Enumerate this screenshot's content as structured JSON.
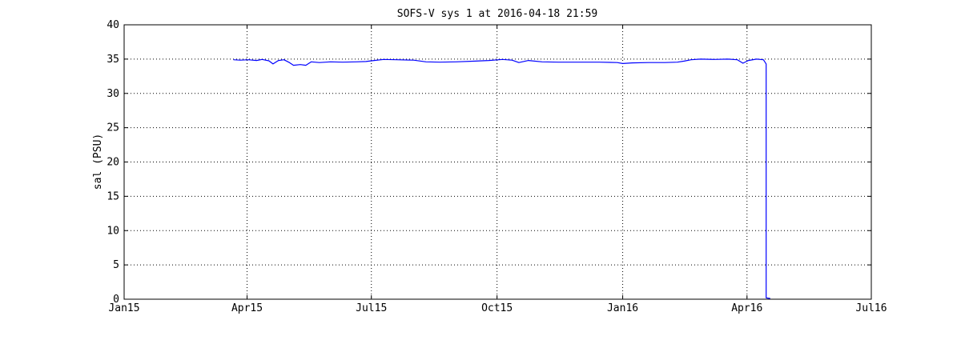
{
  "chart_data": {
    "type": "line",
    "title": "SOFS-V sys 1 at 2016-04-18 21:59",
    "xlabel": "",
    "ylabel": "sal (PSU)",
    "ylim": [
      0,
      40
    ],
    "yticks": [
      0,
      5,
      10,
      15,
      20,
      25,
      30,
      35,
      40
    ],
    "xlim": [
      "2015-01-01",
      "2016-07-01"
    ],
    "xticks": [
      {
        "date": "2015-01-01",
        "label": "Jan15"
      },
      {
        "date": "2015-04-01",
        "label": "Apr15"
      },
      {
        "date": "2015-07-01",
        "label": "Jul15"
      },
      {
        "date": "2015-10-01",
        "label": "Oct15"
      },
      {
        "date": "2016-01-01",
        "label": "Jan16"
      },
      {
        "date": "2016-04-01",
        "label": "Apr16"
      },
      {
        "date": "2016-07-01",
        "label": "Jul16"
      }
    ],
    "grid": true,
    "series": [
      {
        "color": "#0000ff",
        "points": [
          [
            "2015-03-22",
            34.9
          ],
          [
            "2015-03-27",
            34.85
          ],
          [
            "2015-04-02",
            34.9
          ],
          [
            "2015-04-08",
            34.8
          ],
          [
            "2015-04-12",
            34.95
          ],
          [
            "2015-04-17",
            34.75
          ],
          [
            "2015-04-20",
            34.3
          ],
          [
            "2015-04-24",
            34.8
          ],
          [
            "2015-04-28",
            34.9
          ],
          [
            "2015-05-02",
            34.5
          ],
          [
            "2015-05-05",
            34.1
          ],
          [
            "2015-05-10",
            34.2
          ],
          [
            "2015-05-14",
            34.1
          ],
          [
            "2015-05-18",
            34.6
          ],
          [
            "2015-05-24",
            34.5
          ],
          [
            "2015-06-01",
            34.6
          ],
          [
            "2015-06-10",
            34.55
          ],
          [
            "2015-06-20",
            34.6
          ],
          [
            "2015-06-27",
            34.65
          ],
          [
            "2015-07-03",
            34.8
          ],
          [
            "2015-07-10",
            34.95
          ],
          [
            "2015-07-20",
            34.9
          ],
          [
            "2015-08-01",
            34.85
          ],
          [
            "2015-08-10",
            34.6
          ],
          [
            "2015-08-20",
            34.55
          ],
          [
            "2015-09-01",
            34.6
          ],
          [
            "2015-09-15",
            34.7
          ],
          [
            "2015-09-25",
            34.8
          ],
          [
            "2015-10-05",
            34.95
          ],
          [
            "2015-10-12",
            34.85
          ],
          [
            "2015-10-17",
            34.5
          ],
          [
            "2015-10-24",
            34.8
          ],
          [
            "2015-11-03",
            34.6
          ],
          [
            "2015-11-15",
            34.55
          ],
          [
            "2015-12-01",
            34.55
          ],
          [
            "2015-12-15",
            34.55
          ],
          [
            "2015-12-28",
            34.5
          ],
          [
            "2016-01-01",
            34.35
          ],
          [
            "2016-01-08",
            34.45
          ],
          [
            "2016-01-20",
            34.5
          ],
          [
            "2016-02-01",
            34.5
          ],
          [
            "2016-02-10",
            34.55
          ],
          [
            "2016-02-15",
            34.7
          ],
          [
            "2016-02-20",
            34.9
          ],
          [
            "2016-02-27",
            35.0
          ],
          [
            "2016-03-08",
            34.95
          ],
          [
            "2016-03-18",
            35.0
          ],
          [
            "2016-03-25",
            34.9
          ],
          [
            "2016-03-29",
            34.4
          ],
          [
            "2016-04-02",
            34.8
          ],
          [
            "2016-04-08",
            35.0
          ],
          [
            "2016-04-13",
            34.9
          ],
          [
            "2016-04-15",
            34.3
          ],
          [
            "2016-04-15",
            0.2
          ],
          [
            "2016-04-18",
            0.1
          ]
        ]
      }
    ]
  }
}
